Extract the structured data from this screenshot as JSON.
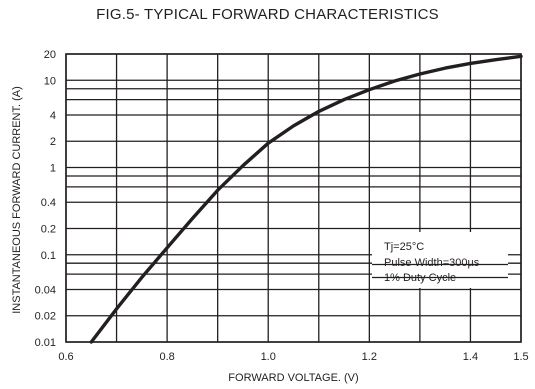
{
  "chart_data": {
    "type": "line",
    "title": "FIG.5- TYPICAL FORWARD CHARACTERISTICS",
    "xlabel": "FORWARD VOLTAGE. (V)",
    "ylabel": "INSTANTANEOUS FORWARD CURRENT. (A)",
    "xlim": [
      0.6,
      1.5
    ],
    "ylim": [
      0.01,
      20
    ],
    "yscale": "log",
    "grid": true,
    "x_ticks": [
      "0.6",
      "0.8",
      "1.0",
      "1.2",
      "1.4",
      "1.5"
    ],
    "y_ticks": [
      "20",
      "10",
      "4",
      "2",
      "1",
      "0.4",
      "0.2",
      "0.1",
      "0.04",
      "0.02",
      "0.01"
    ],
    "annotation": [
      "Tj=25°C",
      "Pulse Width=300µs",
      "1% Duty Cycle"
    ],
    "series": [
      {
        "color": "#231f20",
        "x": [
          0.65,
          0.7,
          0.75,
          0.8,
          0.85,
          0.9,
          0.95,
          1.0,
          1.05,
          1.1,
          1.15,
          1.2,
          1.25,
          1.3,
          1.35,
          1.4,
          1.45,
          1.5
        ],
        "y": [
          0.01,
          0.024,
          0.055,
          0.12,
          0.26,
          0.55,
          1.05,
          1.9,
          3.0,
          4.4,
          6.0,
          7.8,
          9.8,
          11.8,
          13.8,
          15.6,
          17.2,
          18.8
        ]
      }
    ]
  }
}
